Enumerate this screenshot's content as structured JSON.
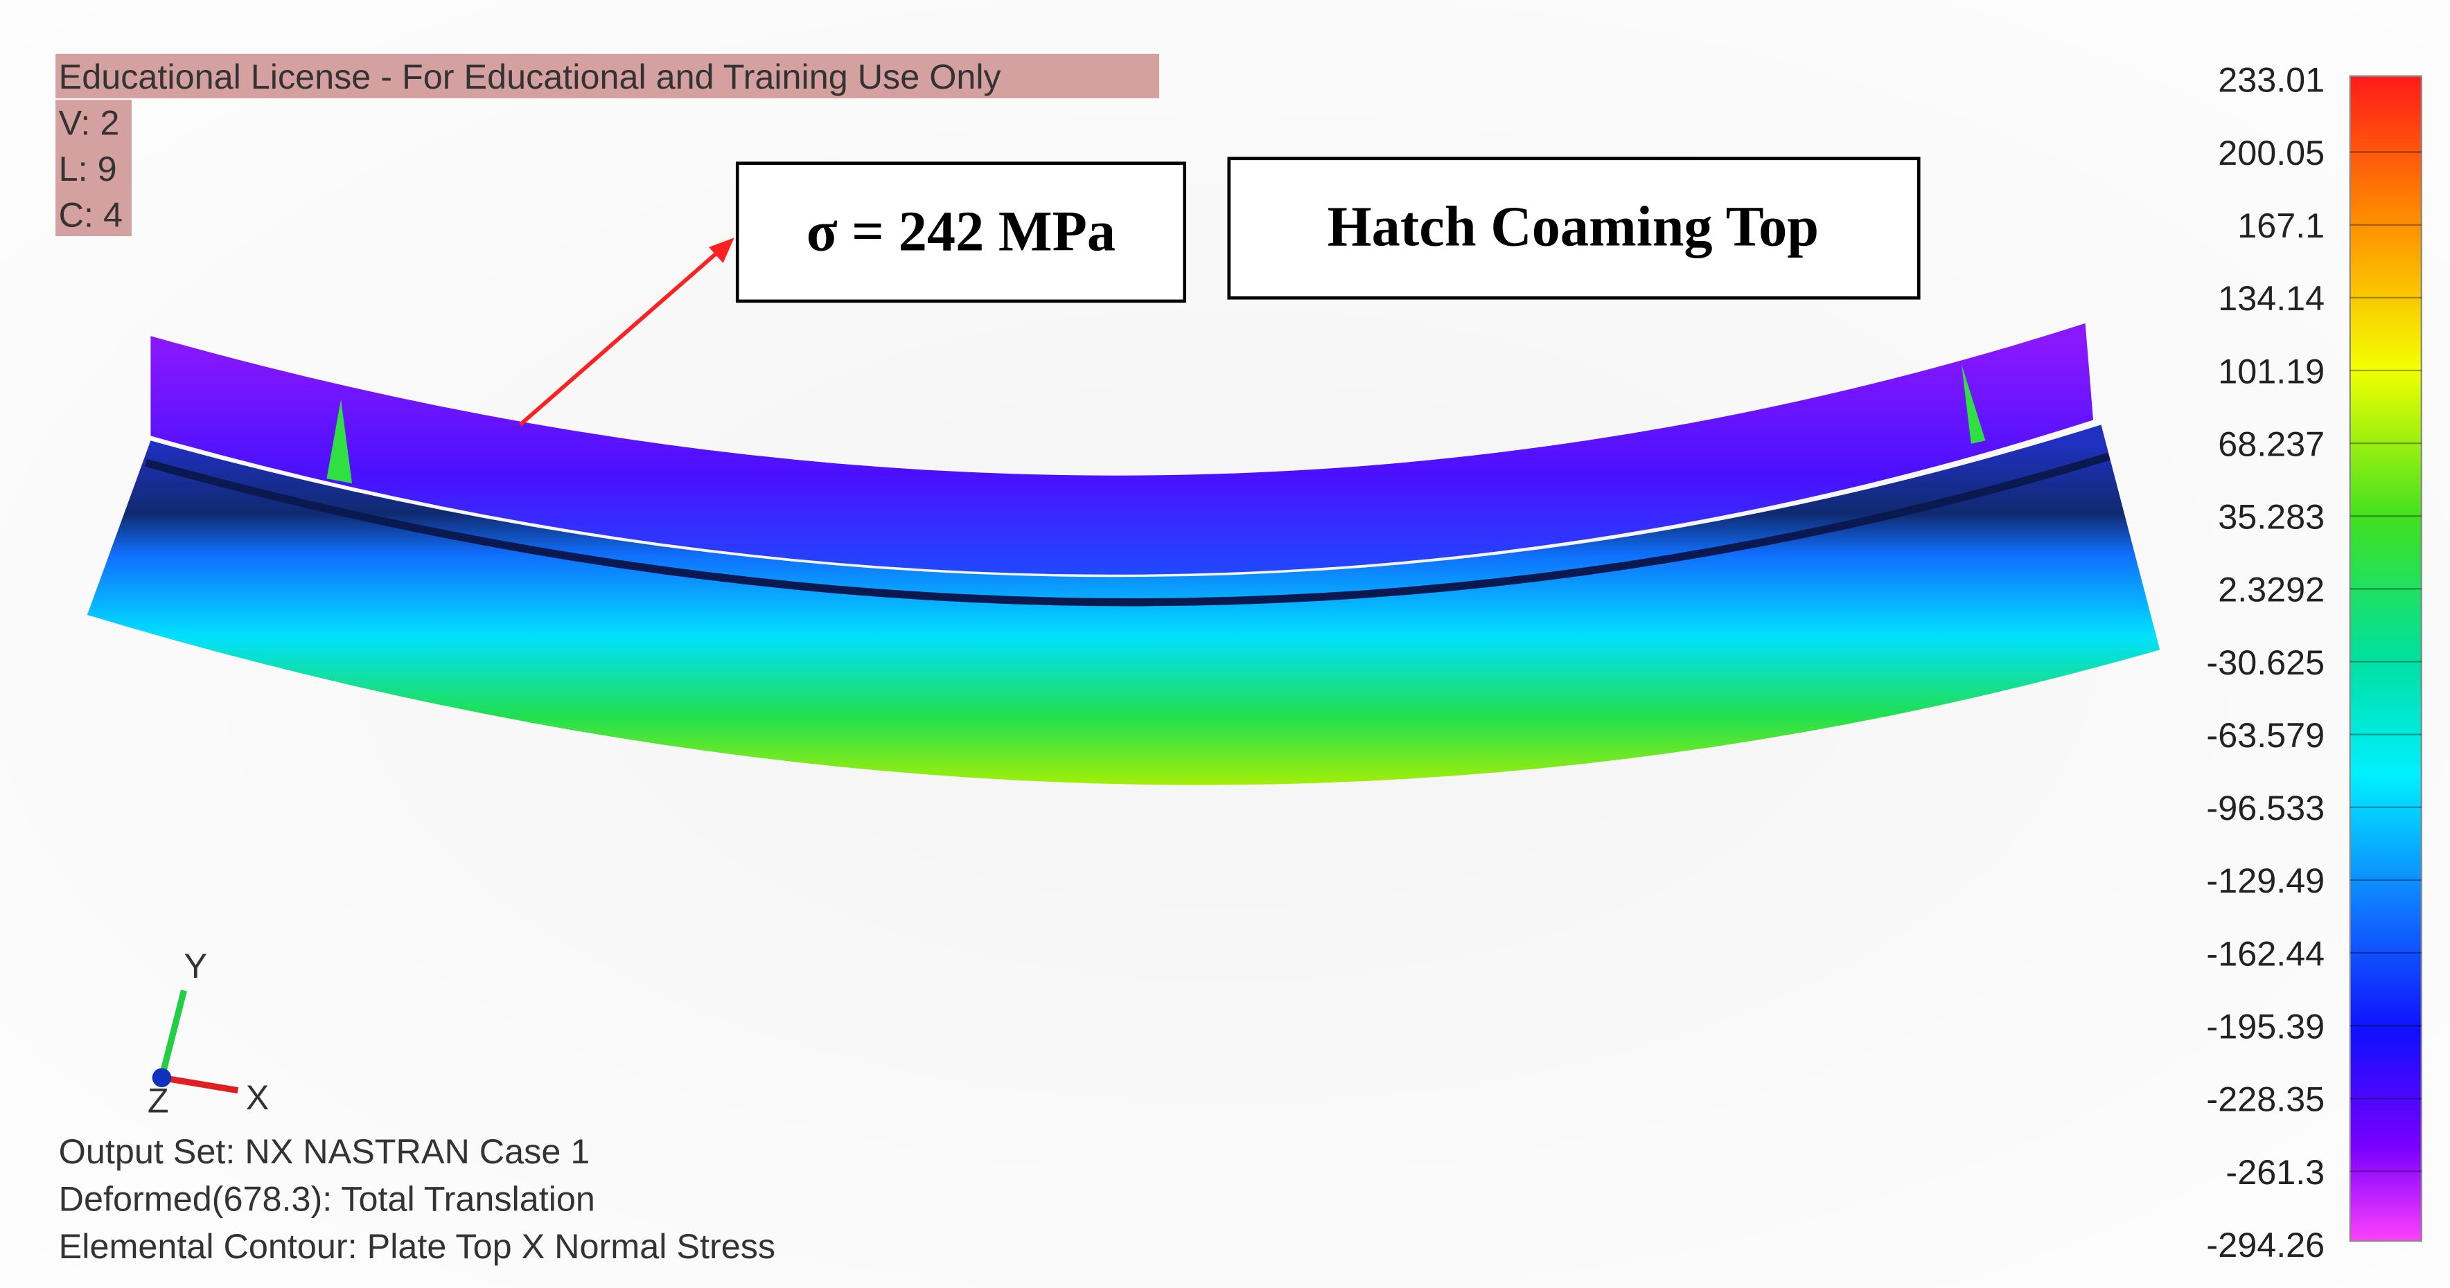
{
  "header": {
    "license": "Educational License - For Educational and Training Use Only",
    "info": [
      "V: 2",
      "L: 9",
      "C: 4"
    ]
  },
  "annotations": {
    "stress": "σ = 242 MPa",
    "location": "Hatch Coaming Top"
  },
  "legend": {
    "labels": [
      "233.01",
      "200.05",
      "167.1",
      "134.14",
      "101.19",
      "68.237",
      "35.283",
      "2.3292",
      "-30.625",
      "-63.579",
      "-96.533",
      "-129.49",
      "-162.44",
      "-195.39",
      "-228.35",
      "-261.3",
      "-294.26"
    ]
  },
  "triad": {
    "y": "Y",
    "x": "X",
    "z": "Z"
  },
  "footer": [
    "Output Set: NX NASTRAN Case 1",
    "Deformed(678.3): Total Translation",
    "Elemental Contour: Plate Top X Normal Stress"
  ]
}
